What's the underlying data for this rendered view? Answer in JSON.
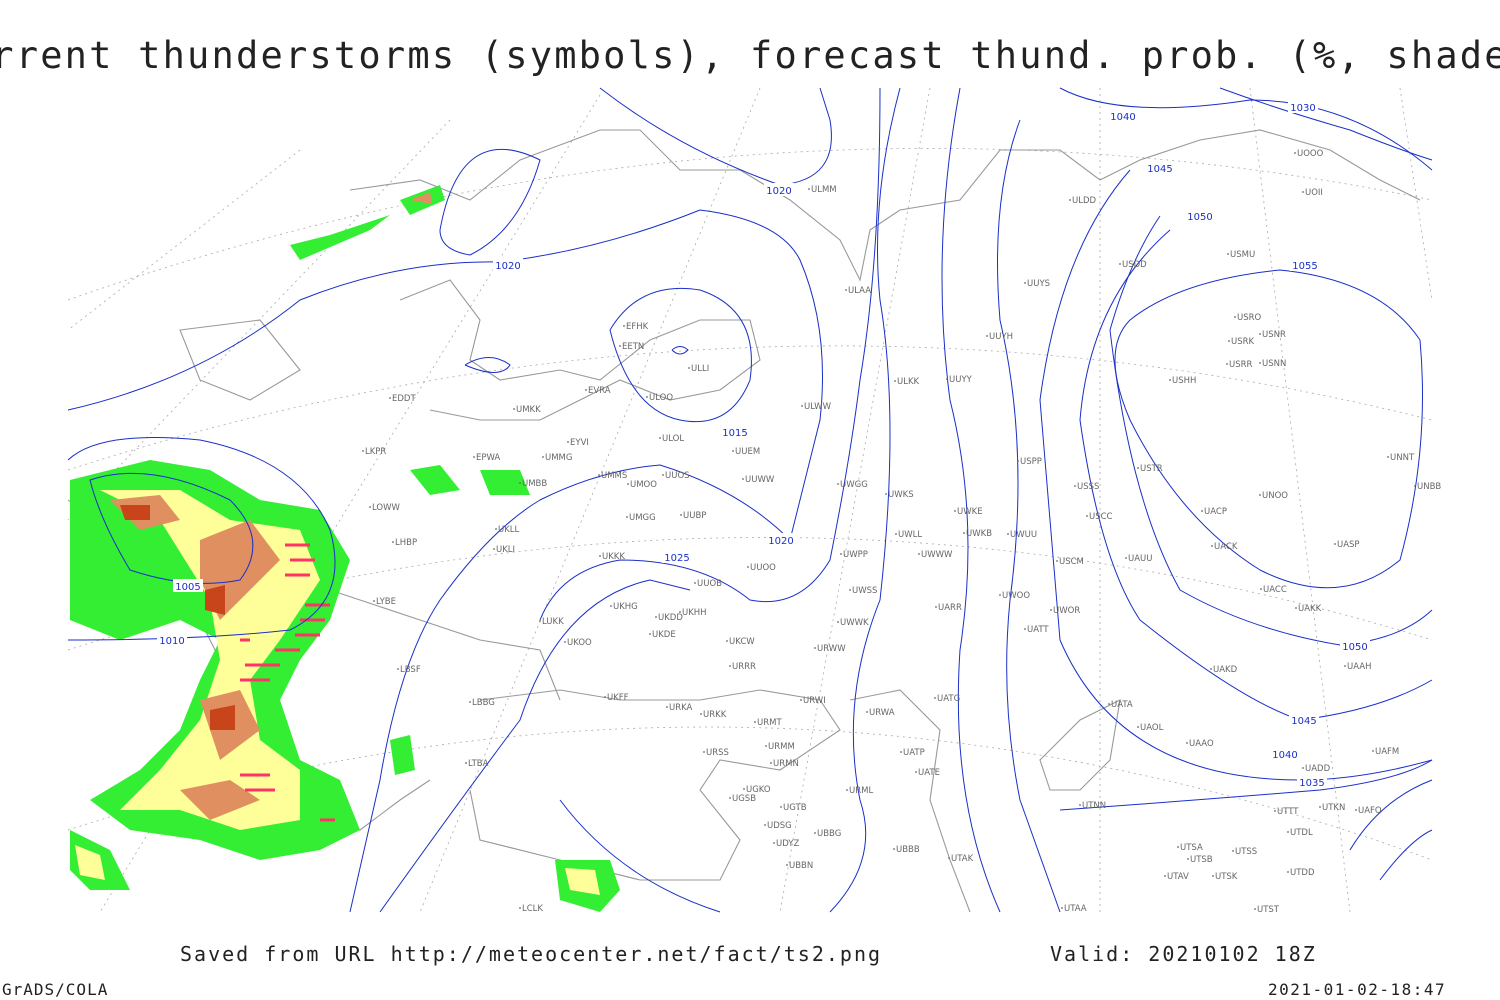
{
  "title": "Current thunderstorms (symbols), forecast thund. prob. (%, shaded)",
  "footer": {
    "source": "Saved from URL http://meteocenter.net/fact/ts2.png",
    "valid": "Valid: 20210102 18Z",
    "software": "GrADS/COLA",
    "timestamp": "2021-01-02-18:47"
  },
  "isobar_labels": [
    1020,
    1020,
    1015,
    1020,
    1025,
    1005,
    1010,
    1030,
    1040,
    1045,
    1050,
    1055,
    1050,
    1045,
    1040,
    1035
  ],
  "stations": [
    "ULMM",
    "ULDD",
    "UOOO",
    "UOII",
    "USDD",
    "USMU",
    "ULAA",
    "UUYS",
    "USRO",
    "USRK",
    "USNR",
    "USRR",
    "USNN",
    "USHH",
    "UUYH",
    "EFHK",
    "EETN",
    "ULLI",
    "ULOO",
    "EVRA",
    "ULKK",
    "UUYY",
    "ULWW",
    "EDDT",
    "UMKK",
    "ULOL",
    "EYVI",
    "UUEM",
    "LKPR",
    "EPWA",
    "UMMG",
    "USPP",
    "USTR",
    "UNNT",
    "UNBB",
    "UMMS",
    "UMOO",
    "UUOS",
    "UUWW",
    "UWGG",
    "UWKS",
    "USSS",
    "UNOO",
    "UMBB",
    "LOWW",
    "UUBP",
    "UMGG",
    "UWKE",
    "USCC",
    "UACP",
    "UKLL",
    "LHBP",
    "UKLI",
    "UKKK",
    "UWLL",
    "UWKB",
    "UWUU",
    "UACK",
    "UASP",
    "UWPP",
    "UWWW",
    "USCM",
    "UAUU",
    "UUOO",
    "LYBE",
    "UUOB",
    "UACC",
    "UWSS",
    "UKHH",
    "UKHG",
    "UKDD",
    "UARR",
    "UWOO",
    "UWOR",
    "UAKK",
    "LUKK",
    "UWWK",
    "UATT",
    "UKOO",
    "UKDE",
    "UKCW",
    "URWW",
    "UAAH",
    "LBSF",
    "URRR",
    "UAKD",
    "LBBG",
    "UKFF",
    "URKA",
    "URWI",
    "UATG",
    "UATA",
    "URKK",
    "URMT",
    "URWA",
    "UAOL",
    "UAAO",
    "LTBA",
    "URSS",
    "URMM",
    "UATP",
    "UADD",
    "UAFM",
    "URMN",
    "UATE",
    "UGKO",
    "URML",
    "UGSB",
    "UGTB",
    "UTNN",
    "UTTT",
    "UTKN",
    "UAFO",
    "UDSG",
    "UTDL",
    "UBBG",
    "UDYZ",
    "UBBB",
    "UTSA",
    "UTSS",
    "UTAK",
    "UTSB",
    "UBBN",
    "UTDD",
    "UTAV",
    "UTSK",
    "UTAA",
    "UTST",
    "LCLK"
  ]
}
